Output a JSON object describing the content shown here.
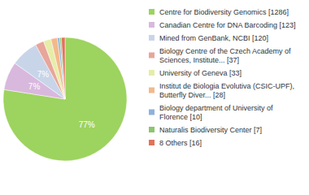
{
  "chart_data": {
    "type": "pie",
    "categories": [
      "Centre for Biodiversity Genomics [1286]",
      "Canadian Centre for DNA Barcoding [123]",
      "Mined from GenBank, NCBI [120]",
      "Biology Centre of the Czech Academy of Sciences, Institute... [37]",
      "University of Geneva [33]",
      "Institut de Biologia Evolutiva (CSIC-UPF), Butterfly Diver... [28]",
      "Biology department of University of Florence [10]",
      "Naturalis Biodiversity Center [7]",
      "8 Others [16]"
    ],
    "values": [
      77.47,
      7.41,
      7.23,
      2.23,
      1.99,
      1.69,
      0.6,
      0.42,
      0.96
    ],
    "value_labels": [
      "77%",
      "7%",
      "7%",
      null,
      null,
      null,
      null,
      null,
      null
    ],
    "colors": [
      "#9dd35f",
      "#d9b8de",
      "#c8d5e9",
      "#e8a59b",
      "#e6eda8",
      "#f3b98a",
      "#8fb2dc",
      "#8cc66d",
      "#e0735a"
    ],
    "legend": "right",
    "data_labels": true
  }
}
